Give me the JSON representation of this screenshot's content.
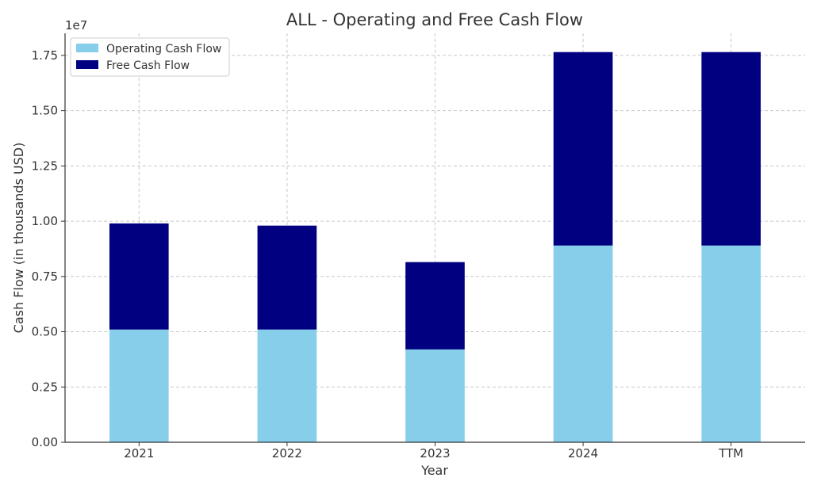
{
  "chart_data": {
    "type": "bar",
    "stacked": true,
    "title": "ALL - Operating and Free Cash Flow",
    "xlabel": "Year",
    "ylabel": "Cash Flow (in thousands USD)",
    "y_scale_label": "1e7",
    "categories": [
      "2021",
      "2022",
      "2023",
      "2024",
      "TTM"
    ],
    "series": [
      {
        "name": "Operating Cash Flow",
        "color": "#87CEEB",
        "values": [
          5100000,
          5100000,
          4200000,
          8900000,
          8900000
        ]
      },
      {
        "name": "Free Cash Flow",
        "color": "#000080",
        "values": [
          4800000,
          4700000,
          3950000,
          8750000,
          8750000
        ]
      }
    ],
    "ylim": [
      0,
      18500000
    ],
    "y_ticks": [
      0,
      2500000,
      5000000,
      7500000,
      10000000,
      12500000,
      15000000,
      17500000
    ],
    "y_tick_labels": [
      "0.00",
      "0.25",
      "0.50",
      "0.75",
      "1.00",
      "1.25",
      "1.50",
      "1.75"
    ],
    "grid": true,
    "legend_position": "top-left"
  }
}
